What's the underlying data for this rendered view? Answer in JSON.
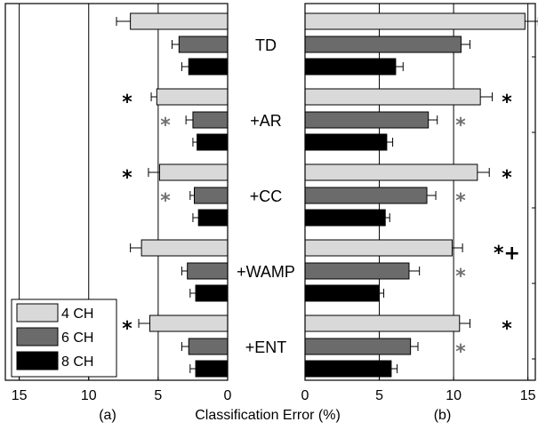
{
  "chart_data": {
    "type": "bar",
    "orientation": "horizontal-mirrored",
    "categories": [
      "TD",
      "+AR",
      "+CC",
      "+WAMP",
      "+ENT"
    ],
    "xlabel": "Classification Error (%)",
    "panels": [
      {
        "label": "(a)",
        "direction": "right-to-left",
        "xlim": [
          0,
          16
        ],
        "xticks": [
          15,
          10,
          5,
          0
        ],
        "series": [
          {
            "name": "4 CH",
            "values": [
              7.0,
              5.1,
              4.9,
              6.2,
              5.6
            ],
            "errors": [
              1.0,
              0.4,
              0.8,
              0.8,
              0.8
            ]
          },
          {
            "name": "6 CH",
            "values": [
              3.5,
              2.5,
              2.4,
              2.9,
              2.8
            ],
            "errors": [
              0.5,
              0.5,
              0.3,
              0.4,
              0.5
            ]
          },
          {
            "name": "8 CH",
            "values": [
              2.8,
              2.2,
              2.1,
              2.3,
              2.3
            ],
            "errors": [
              0.5,
              0.3,
              0.4,
              0.4,
              0.4
            ]
          }
        ],
        "annotations": [
          {
            "category": "+AR",
            "series": "4 CH",
            "text": "*"
          },
          {
            "category": "+AR",
            "series": "6 CH",
            "text": "*"
          },
          {
            "category": "+CC",
            "series": "4 CH",
            "text": "*"
          },
          {
            "category": "+CC",
            "series": "6 CH",
            "text": "*"
          },
          {
            "category": "+ENT",
            "series": "4 CH",
            "text": "*"
          }
        ]
      },
      {
        "label": "(b)",
        "direction": "left-to-right",
        "xlim": [
          0,
          15.5
        ],
        "xticks": [
          0,
          5,
          10,
          15
        ],
        "series": [
          {
            "name": "4 CH",
            "values": [
              14.8,
              11.8,
              11.6,
              9.9,
              10.4
            ],
            "errors": [
              0.9,
              0.8,
              0.8,
              0.7,
              0.7
            ]
          },
          {
            "name": "6 CH",
            "values": [
              10.5,
              8.3,
              8.2,
              7.0,
              7.1
            ],
            "errors": [
              0.6,
              0.6,
              0.6,
              0.7,
              0.5
            ]
          },
          {
            "name": "8 CH",
            "values": [
              6.1,
              5.5,
              5.4,
              5.0,
              5.8
            ],
            "errors": [
              0.5,
              0.4,
              0.3,
              0.3,
              0.4
            ]
          }
        ],
        "annotations": [
          {
            "category": "+AR",
            "series": "4 CH",
            "text": "*"
          },
          {
            "category": "+AR",
            "series": "6 CH",
            "text": "*"
          },
          {
            "category": "+CC",
            "series": "4 CH",
            "text": "*"
          },
          {
            "category": "+CC",
            "series": "6 CH",
            "text": "*"
          },
          {
            "category": "+WAMP",
            "series": "4 CH",
            "text": "*+"
          },
          {
            "category": "+WAMP",
            "series": "6 CH",
            "text": "*"
          },
          {
            "category": "+ENT",
            "series": "4 CH",
            "text": "*"
          },
          {
            "category": "+ENT",
            "series": "6 CH",
            "text": "*"
          }
        ]
      }
    ],
    "legend": {
      "placement": "bottom-left",
      "entries": [
        "4 CH",
        "6 CH",
        "8 CH"
      ]
    },
    "grid": "vertical",
    "colors": {
      "4 CH": "#d9d9d9",
      "6 CH": "#6b6b6b",
      "8 CH": "#000000",
      "annotation_black": "#000000",
      "annotation_gray": "#707070"
    }
  }
}
